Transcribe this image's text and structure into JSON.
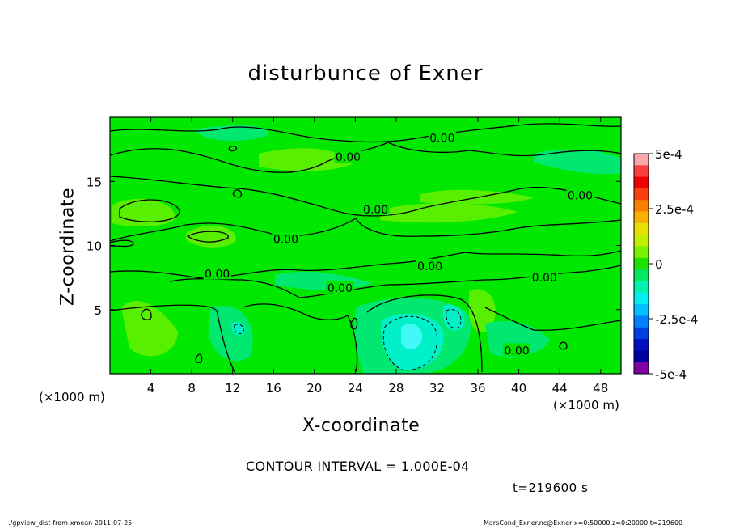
{
  "chart_data": {
    "type": "heatmap",
    "title": "disturbunce of Exner",
    "xlabel": "X-coordinate",
    "ylabel": "Z-coordinate",
    "x_unit_label": "(×1000 m)",
    "xlim": [
      0,
      50
    ],
    "ylim": [
      0,
      20
    ],
    "x_ticks": [
      4,
      8,
      12,
      16,
      20,
      24,
      28,
      32,
      36,
      40,
      44,
      48
    ],
    "y_ticks": [
      5,
      10,
      15
    ],
    "contour_interval_text": "CONTOUR INTERVAL = 1.000E-04",
    "contour_labels": [
      {
        "text": "0.00",
        "x": 32.5,
        "z": 18.4
      },
      {
        "text": "0.00",
        "x": 23.3,
        "z": 16.9
      },
      {
        "text": "0.00",
        "x": 26.0,
        "z": 12.8
      },
      {
        "text": "0.00",
        "x": 46.0,
        "z": 13.9
      },
      {
        "text": "0.00",
        "x": 17.2,
        "z": 10.5
      },
      {
        "text": "0.00",
        "x": 31.3,
        "z": 8.4
      },
      {
        "text": "0.00",
        "x": 10.5,
        "z": 7.8
      },
      {
        "text": "0.00",
        "x": 22.5,
        "z": 6.7
      },
      {
        "text": "0.00",
        "x": 42.5,
        "z": 7.5
      },
      {
        "text": "0.00",
        "x": 39.8,
        "z": 1.8
      }
    ],
    "colorbar": {
      "range": [
        -0.0005,
        0.0005
      ],
      "labels": [
        "5e-4",
        "2.5e-4",
        "0",
        "-2.5e-4",
        "-5e-4"
      ],
      "colors": [
        "#f8a8a8",
        "#f84040",
        "#f00000",
        "#f84010",
        "#f88000",
        "#f8b000",
        "#e8e000",
        "#c0f000",
        "#78f000",
        "#20e000",
        "#00e860",
        "#00f0b0",
        "#00f0f0",
        "#00c0ff",
        "#0080ff",
        "#0040e0",
        "#0010c0",
        "#0000a0",
        "#8000a0"
      ]
    },
    "field_colors": {
      "background": "#00e800",
      "weak_positive": "#58f000",
      "weak_negative": "#00e870",
      "moderate_negative": "#00f0c8",
      "strong_negative": "#40f8f8"
    }
  },
  "time_label": "t=219600 s",
  "footer_left": "./gpview_dist-from-xmean  2011-07-25",
  "footer_right": "MarsCond_Exner.nc@Exner,x=0:50000,z=0:20000,t=219600"
}
